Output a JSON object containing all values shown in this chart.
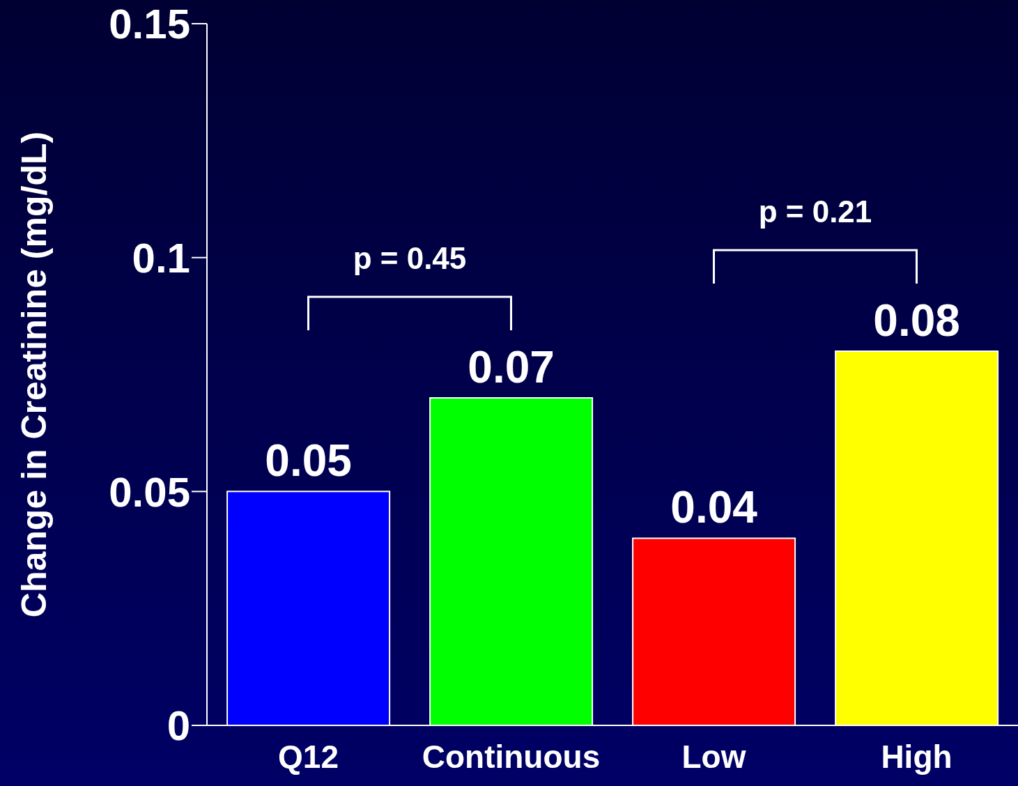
{
  "chart_data": {
    "type": "bar",
    "ylabel": "Change in Creatinine (mg/dL)",
    "categories": [
      "Q12",
      "Continuous",
      "Low",
      "High"
    ],
    "values": [
      0.05,
      0.07,
      0.04,
      0.08
    ],
    "colors": [
      "#0000ff",
      "#00ff00",
      "#ff0000",
      "#ffff00"
    ],
    "ylim": [
      0,
      0.15
    ],
    "yticks": [
      0,
      0.05,
      0.1,
      0.15
    ],
    "data_labels": true,
    "annotations": [
      "p = 0.45",
      "p = 0.21"
    ]
  }
}
